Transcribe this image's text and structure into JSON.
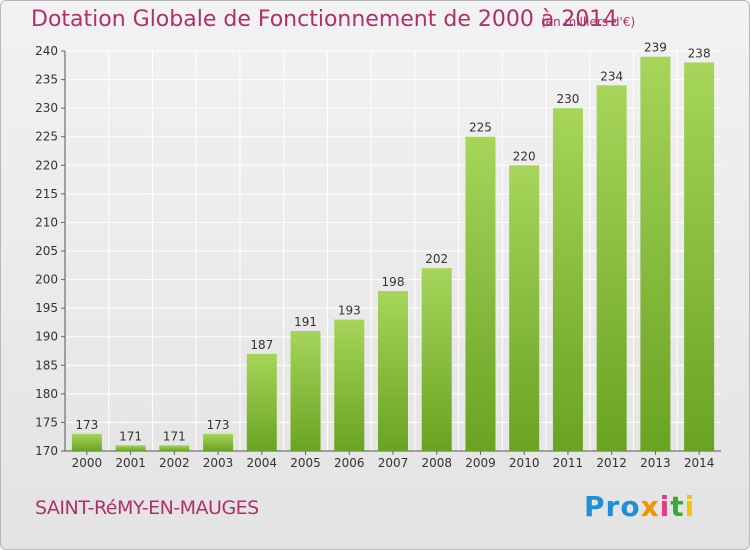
{
  "title": "Dotation Globale de Fonctionnement de 2000 à 2014",
  "subtitle": "(en milliers d'€)",
  "commune": "SAINT-RéMY-EN-MAUGES",
  "logo": {
    "p": "Pro",
    "x": "x",
    "i1": "i",
    "t": "t",
    "i2": "i"
  },
  "colors": {
    "bar_top": "#a6d55a",
    "bar_bottom": "#6aa322",
    "title": "#b0306a",
    "grid": "#ffffff",
    "axis_text": "#333333"
  },
  "chart_data": {
    "type": "bar",
    "title": "Dotation Globale de Fonctionnement de 2000 à 2014",
    "subtitle": "(en milliers d'€)",
    "categories": [
      "2000",
      "2001",
      "2002",
      "2003",
      "2004",
      "2005",
      "2006",
      "2007",
      "2008",
      "2009",
      "2010",
      "2011",
      "2012",
      "2013",
      "2014"
    ],
    "values": [
      173,
      171,
      171,
      173,
      187,
      191,
      193,
      198,
      202,
      225,
      220,
      230,
      234,
      239,
      238
    ],
    "ylim": [
      170,
      240
    ],
    "yticks": [
      170,
      175,
      180,
      185,
      190,
      195,
      200,
      205,
      210,
      215,
      220,
      225,
      230,
      235,
      240
    ],
    "grid": true,
    "data_labels": true
  }
}
